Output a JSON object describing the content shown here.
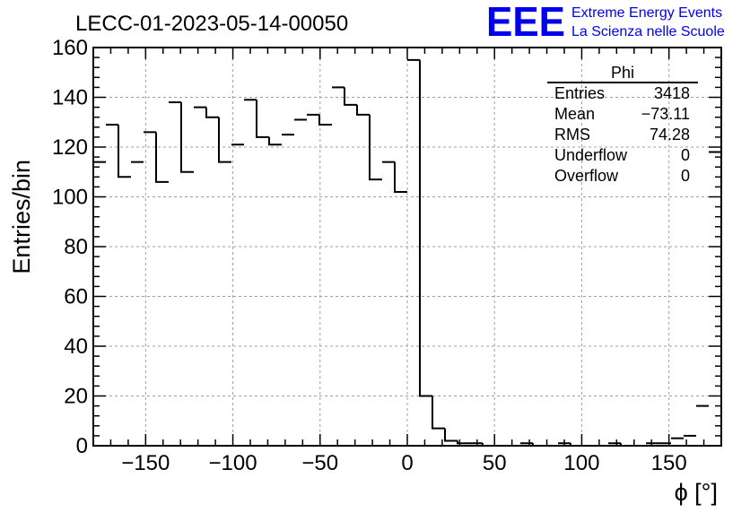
{
  "header": {
    "run_title": "LECC-01-2023-05-14-00050"
  },
  "logo": {
    "mark": "EEE",
    "line1": "Extreme Energy Events",
    "line2": "La Scienza nelle Scuole",
    "color": "#0000ee"
  },
  "stats_box": {
    "name": "Phi",
    "rows": [
      {
        "label": "Entries",
        "value": "3418"
      },
      {
        "label": "Mean",
        "value": "−73.11"
      },
      {
        "label": "RMS",
        "value": "74.28"
      },
      {
        "label": "Underflow",
        "value": "0"
      },
      {
        "label": "Overflow",
        "value": "0"
      }
    ]
  },
  "chart_data": {
    "type": "bar",
    "style": "step-histogram",
    "xlabel": "ϕ [°]",
    "ylabel": "Entries/bin",
    "xlim": [
      -180,
      180
    ],
    "ylim": [
      0,
      160
    ],
    "bin_width": 7.2,
    "x_ticks": [
      -150,
      -100,
      -50,
      0,
      50,
      100,
      150
    ],
    "y_ticks": [
      0,
      20,
      40,
      60,
      80,
      100,
      120,
      140,
      160
    ],
    "grid": true,
    "line_color": "#000000",
    "values": [
      114,
      129,
      108,
      114,
      126,
      106,
      138,
      110,
      136,
      132,
      114,
      121,
      139,
      124,
      121,
      125,
      131,
      133,
      129,
      144,
      137,
      133,
      107,
      114,
      102,
      155,
      20,
      7,
      2,
      1,
      1,
      0,
      0,
      0,
      1,
      0,
      0,
      1,
      0,
      0,
      0,
      1,
      0,
      0,
      1,
      1,
      3,
      4,
      16,
      118
    ]
  }
}
